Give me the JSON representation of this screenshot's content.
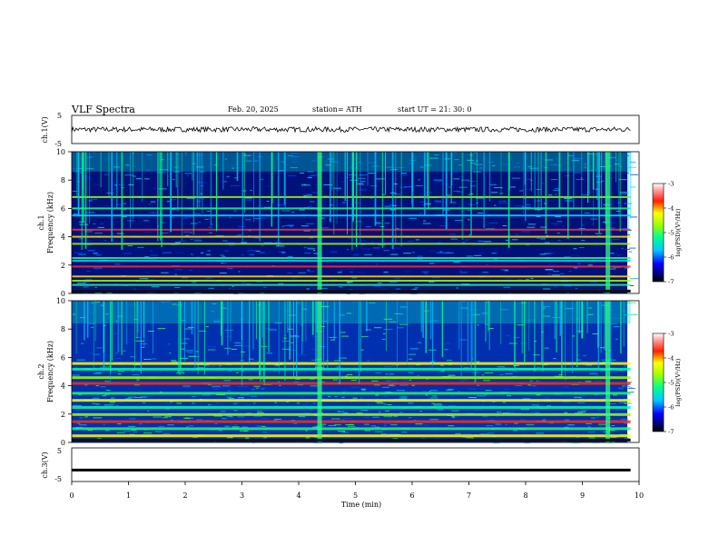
{
  "header": {
    "title": "VLF  Spectra",
    "date": "Feb. 20, 2025",
    "station": "station= ATH",
    "start_ut": "start  UT  =    21: 30: 0"
  },
  "chart_data": [
    {
      "type": "line",
      "panel": "ch1-waveform",
      "ylabel": "ch.1(V)",
      "ylim": [
        -5,
        5
      ],
      "ytick_labels": [
        "5",
        "-5"
      ],
      "xlim": [
        0,
        10
      ],
      "x_end": 9.85,
      "mean_value": 0,
      "amplitude": 0.9
    },
    {
      "type": "heatmap",
      "panel": "ch1-spectrogram",
      "ylabel": "ch.1\nFrequency  (kHz)",
      "ylim": [
        0,
        10
      ],
      "ytick_labels": [
        "0",
        "2",
        "4",
        "6",
        "8",
        "10"
      ],
      "xlim": [
        0,
        10
      ],
      "x_end": 9.85,
      "colorbar_label": "log(PSD)(V²/Hz)",
      "colorbar_range": [
        -7,
        -3
      ],
      "colorbar_tick_labels": [
        "-3",
        "-4",
        "-5",
        "-6",
        "-7"
      ],
      "bands_khz": [
        0.2,
        0.6,
        0.9,
        1.2,
        1.9,
        2.3,
        2.5,
        3.5,
        4.0,
        4.5,
        5.5,
        6.0,
        6.8
      ],
      "bursts_min": [
        4.37,
        9.45
      ]
    },
    {
      "type": "heatmap",
      "panel": "ch2-spectrogram",
      "ylabel": "ch.2\nFrequency  (kHz)",
      "ylim": [
        0,
        10
      ],
      "ytick_labels": [
        "0",
        "2",
        "4",
        "6",
        "8",
        "10"
      ],
      "xlim": [
        0,
        10
      ],
      "x_end": 9.85,
      "colorbar_label": "log(PSD)(V²/Hz)",
      "colorbar_range": [
        -7,
        -3
      ],
      "colorbar_tick_labels": [
        "-3",
        "-4",
        "-5",
        "-6",
        "-7"
      ],
      "bands_khz": [
        0.5,
        1.0,
        1.5,
        2.0,
        2.5,
        3.0,
        3.5,
        4.2,
        4.6,
        5.2,
        5.6
      ],
      "bursts_min": [
        4.37,
        9.45
      ]
    },
    {
      "type": "line",
      "panel": "ch3-waveform",
      "ylabel": "ch.3(V)",
      "ylim": [
        -5,
        5
      ],
      "ytick_labels": [
        "5",
        "-5"
      ],
      "xlim": [
        0,
        10
      ],
      "x_end": 9.85,
      "mean_value": -1.6,
      "amplitude": 0.15,
      "xlabel": "Time  (min)",
      "xtick_labels": [
        "0",
        "1",
        "2",
        "3",
        "4",
        "5",
        "6",
        "7",
        "8",
        "9",
        "10"
      ]
    }
  ]
}
